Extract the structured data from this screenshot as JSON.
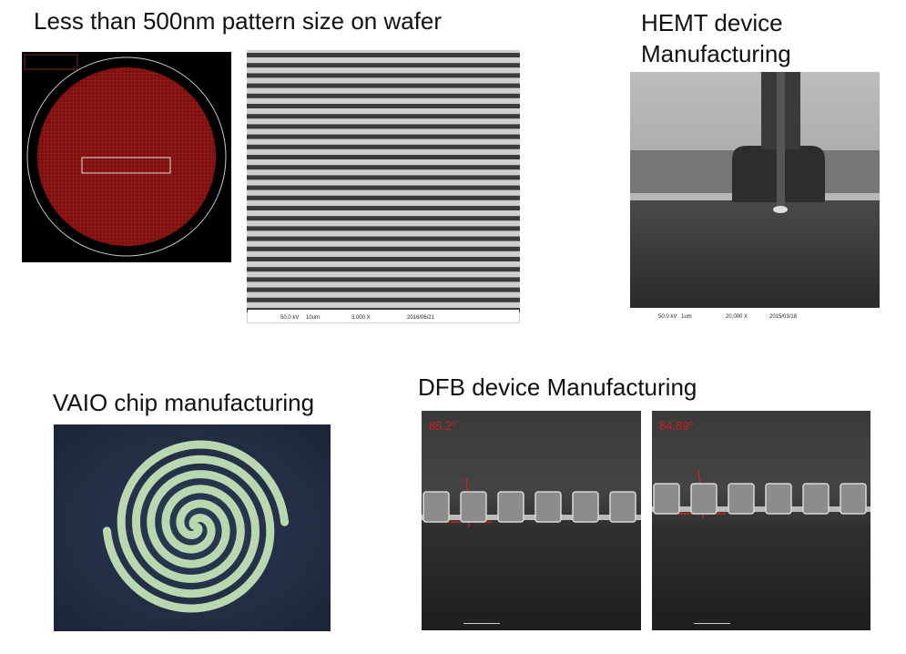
{
  "wafer": {
    "title": "Less than 500nm pattern size on wafer",
    "sem_info": [
      "50.0 kV",
      "10um",
      "3,000 X",
      "2016/06/21"
    ]
  },
  "hemt": {
    "title_lines": [
      "HEMT device",
      "Manufacturing"
    ],
    "sem_info": [
      "50.0 kV",
      "1um",
      "20,000 X",
      "2015/03/18"
    ]
  },
  "vaio": {
    "title": "VAIO chip manufacturing"
  },
  "dfb": {
    "title": "DFB device Manufacturing",
    "angles": [
      "85.2°",
      "84.89°"
    ]
  }
}
